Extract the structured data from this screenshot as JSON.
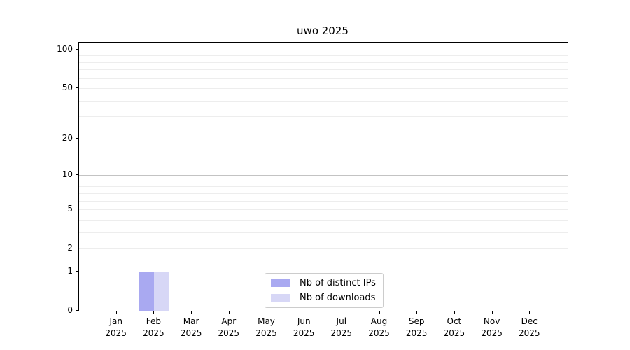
{
  "title": "uwo 2025",
  "legend": {
    "items": [
      {
        "label": "Nb of distinct IPs",
        "color": "#a9a9f1"
      },
      {
        "label": "Nb of downloads",
        "color": "#d7d7f6"
      }
    ]
  },
  "chart_data": {
    "type": "bar",
    "title": "uwo 2025",
    "categories": [
      "Jan",
      "Feb",
      "Mar",
      "Apr",
      "May",
      "Jun",
      "Jul",
      "Aug",
      "Sep",
      "Oct",
      "Nov",
      "Dec"
    ],
    "x_sublabel": "2025",
    "series": [
      {
        "name": "Nb of distinct IPs",
        "color": "#a9a9f1",
        "values": [
          0,
          1,
          0,
          0,
          0,
          0,
          0,
          0,
          0,
          0,
          0,
          0
        ]
      },
      {
        "name": "Nb of downloads",
        "color": "#d7d7f6",
        "values": [
          0,
          1,
          0,
          0,
          0,
          0,
          0,
          0,
          0,
          0,
          0,
          0
        ]
      }
    ],
    "yscale": "log1p",
    "ylim": [
      0,
      113
    ],
    "yticks": [
      0,
      1,
      2,
      5,
      10,
      20,
      50,
      100
    ],
    "grid_major": [
      1,
      10,
      100
    ],
    "grid_minor": [
      2,
      3,
      4,
      5,
      6,
      7,
      8,
      9,
      20,
      30,
      40,
      50,
      60,
      70,
      80,
      90
    ],
    "legend_position": "lower center",
    "xlabel": "",
    "ylabel": ""
  }
}
